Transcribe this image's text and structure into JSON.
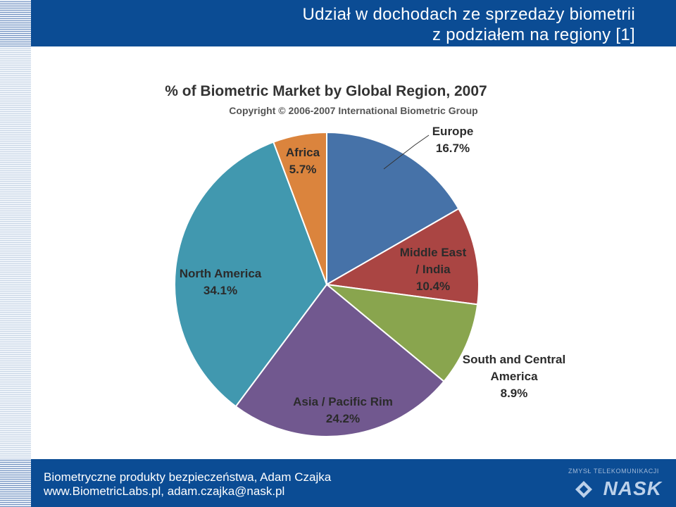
{
  "slide": {
    "title_line1": "Udział w dochodach ze sprzedaży biometrii",
    "title_line2": "z podziałem na regiony [1]"
  },
  "footer": {
    "line1": "Biometryczne produkty bezpieczeństwa, Adam Czajka",
    "line2": "www.BiometricLabs.pl, adam.czajka@nask.pl",
    "logo_tagline": "ZMYSŁ TELEKOMUNIKACJI",
    "logo_name": "NASK"
  },
  "chart_data": {
    "type": "pie",
    "title": "% of Biometric Market by Global Region, 2007",
    "subtitle": "Copyright © 2006-2007 International Biometric Group",
    "slices": [
      {
        "label": [
          "Europe"
        ],
        "value": 16.7,
        "value_label": "16.7%",
        "color": "#4672a8"
      },
      {
        "label": [
          "Middle East",
          "/ India"
        ],
        "value": 10.4,
        "value_label": "10.4%",
        "color": "#aa4543"
      },
      {
        "label": [
          "South and Central",
          "America"
        ],
        "value": 8.9,
        "value_label": "8.9%",
        "color": "#89a54e"
      },
      {
        "label": [
          "Asia / Pacific Rim"
        ],
        "value": 24.2,
        "value_label": "24.2%",
        "color": "#71588f"
      },
      {
        "label": [
          "North America"
        ],
        "value": 34.1,
        "value_label": "34.1%",
        "color": "#4198af"
      },
      {
        "label": [
          "Africa"
        ],
        "value": 5.7,
        "value_label": "5.7%",
        "color": "#db843d"
      }
    ]
  }
}
